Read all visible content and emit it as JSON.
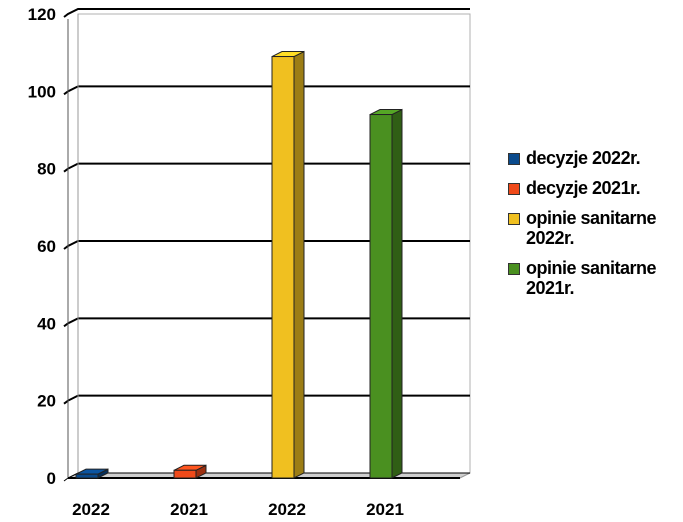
{
  "chart_data": {
    "type": "bar",
    "categories": [
      "2022",
      "2021",
      "2022",
      "2021"
    ],
    "series": [
      {
        "name": "decyzje 2022r.",
        "values": [
          1,
          null,
          null,
          null
        ],
        "color": "#0a4a8c"
      },
      {
        "name": "decyzje 2021r.",
        "values": [
          null,
          2,
          null,
          null
        ],
        "color": "#f04a1a"
      },
      {
        "name": "opinie sanitarne 2022r.",
        "values": [
          null,
          null,
          109,
          null
        ],
        "color": "#f0c020"
      },
      {
        "name": "opinie sanitarne 2021r.",
        "values": [
          null,
          null,
          null,
          94
        ],
        "color": "#4a9020"
      }
    ],
    "ylim": [
      0,
      120
    ],
    "yticks": [
      0,
      20,
      40,
      60,
      80,
      100,
      120
    ],
    "grid": true,
    "legend_position": "right",
    "title": "",
    "xlabel": "",
    "ylabel": ""
  }
}
